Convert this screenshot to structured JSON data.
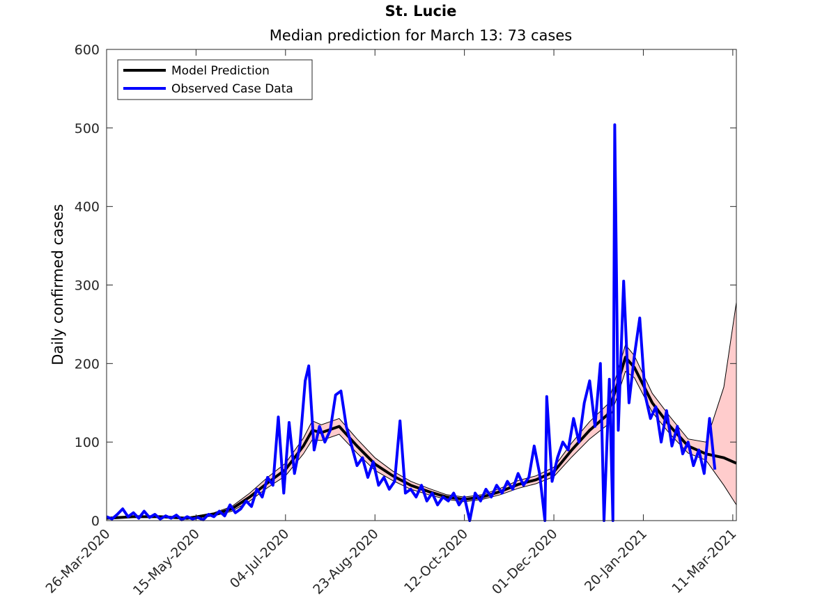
{
  "chart_data": {
    "type": "line",
    "title": "St. Lucie",
    "subtitle": "Median prediction for March 13: 73 cases",
    "xlabel": "",
    "ylabel": "Daily confirmed cases",
    "x_range": [
      "2020-03-26",
      "2021-03-13"
    ],
    "ylim": [
      0,
      600
    ],
    "yticks": [
      0,
      100,
      200,
      300,
      400,
      500,
      600
    ],
    "xticks": [
      {
        "date": "2020-03-26",
        "label": "26-Mar-2020"
      },
      {
        "date": "2020-05-15",
        "label": "15-May-2020"
      },
      {
        "date": "2020-07-04",
        "label": "04-Jul-2020"
      },
      {
        "date": "2020-08-23",
        "label": "23-Aug-2020"
      },
      {
        "date": "2020-10-12",
        "label": "12-Oct-2020"
      },
      {
        "date": "2020-12-01",
        "label": "01-Dec-2020"
      },
      {
        "date": "2021-01-20",
        "label": "20-Jan-2021"
      },
      {
        "date": "2021-03-11",
        "label": "11-Mar-2021"
      }
    ],
    "grid": false,
    "legend_position": "top-left",
    "colors": {
      "model": "#000000",
      "observed": "#0000ff",
      "band_fill": "#ffcccc",
      "axis": "#262626"
    },
    "series": [
      {
        "name": "Model Prediction",
        "points": [
          [
            "2020-03-26",
            3
          ],
          [
            "2020-04-10",
            5
          ],
          [
            "2020-04-25",
            5
          ],
          [
            "2020-05-10",
            3
          ],
          [
            "2020-05-25",
            8
          ],
          [
            "2020-06-04",
            15
          ],
          [
            "2020-06-14",
            30
          ],
          [
            "2020-06-24",
            48
          ],
          [
            "2020-07-04",
            65
          ],
          [
            "2020-07-14",
            95
          ],
          [
            "2020-07-19",
            115
          ],
          [
            "2020-07-24",
            112
          ],
          [
            "2020-08-03",
            120
          ],
          [
            "2020-08-13",
            95
          ],
          [
            "2020-08-23",
            72
          ],
          [
            "2020-09-02",
            57
          ],
          [
            "2020-09-12",
            45
          ],
          [
            "2020-09-22",
            37
          ],
          [
            "2020-10-02",
            30
          ],
          [
            "2020-10-12",
            27
          ],
          [
            "2020-10-22",
            30
          ],
          [
            "2020-11-01",
            37
          ],
          [
            "2020-11-11",
            46
          ],
          [
            "2020-11-21",
            52
          ],
          [
            "2020-12-01",
            62
          ],
          [
            "2020-12-11",
            90
          ],
          [
            "2020-12-21",
            115
          ],
          [
            "2020-12-31",
            135
          ],
          [
            "2021-01-05",
            170
          ],
          [
            "2021-01-10",
            208
          ],
          [
            "2021-01-15",
            195
          ],
          [
            "2021-01-25",
            150
          ],
          [
            "2021-02-04",
            120
          ],
          [
            "2021-02-14",
            95
          ],
          [
            "2021-02-24",
            85
          ],
          [
            "2021-03-06",
            80
          ],
          [
            "2021-03-13",
            73
          ]
        ],
        "lower": [
          [
            "2020-03-26",
            2
          ],
          [
            "2020-04-10",
            4
          ],
          [
            "2020-04-25",
            4
          ],
          [
            "2020-05-10",
            2
          ],
          [
            "2020-05-25",
            6
          ],
          [
            "2020-06-04",
            12
          ],
          [
            "2020-06-14",
            25
          ],
          [
            "2020-06-24",
            42
          ],
          [
            "2020-07-04",
            57
          ],
          [
            "2020-07-14",
            85
          ],
          [
            "2020-07-19",
            103
          ],
          [
            "2020-07-24",
            102
          ],
          [
            "2020-08-03",
            110
          ],
          [
            "2020-08-13",
            86
          ],
          [
            "2020-08-23",
            64
          ],
          [
            "2020-09-02",
            51
          ],
          [
            "2020-09-12",
            40
          ],
          [
            "2020-09-22",
            33
          ],
          [
            "2020-10-02",
            27
          ],
          [
            "2020-10-12",
            24
          ],
          [
            "2020-10-22",
            27
          ],
          [
            "2020-11-01",
            33
          ],
          [
            "2020-11-11",
            41
          ],
          [
            "2020-11-21",
            47
          ],
          [
            "2020-12-01",
            56
          ],
          [
            "2020-12-11",
            81
          ],
          [
            "2020-12-21",
            104
          ],
          [
            "2020-12-31",
            122
          ],
          [
            "2021-01-05",
            155
          ],
          [
            "2021-01-10",
            190
          ],
          [
            "2021-01-15",
            182
          ],
          [
            "2021-01-25",
            138
          ],
          [
            "2021-02-04",
            110
          ],
          [
            "2021-02-14",
            86
          ],
          [
            "2021-02-24",
            77
          ],
          [
            "2021-03-06",
            45
          ],
          [
            "2021-03-13",
            20
          ]
        ],
        "upper": [
          [
            "2020-03-26",
            4
          ],
          [
            "2020-04-10",
            6
          ],
          [
            "2020-04-25",
            6
          ],
          [
            "2020-05-10",
            4
          ],
          [
            "2020-05-25",
            10
          ],
          [
            "2020-06-04",
            18
          ],
          [
            "2020-06-14",
            35
          ],
          [
            "2020-06-24",
            55
          ],
          [
            "2020-07-04",
            73
          ],
          [
            "2020-07-14",
            105
          ],
          [
            "2020-07-19",
            127
          ],
          [
            "2020-07-24",
            122
          ],
          [
            "2020-08-03",
            130
          ],
          [
            "2020-08-13",
            104
          ],
          [
            "2020-08-23",
            80
          ],
          [
            "2020-09-02",
            63
          ],
          [
            "2020-09-12",
            50
          ],
          [
            "2020-09-22",
            41
          ],
          [
            "2020-10-02",
            33
          ],
          [
            "2020-10-12",
            30
          ],
          [
            "2020-10-22",
            33
          ],
          [
            "2020-11-01",
            41
          ],
          [
            "2020-11-11",
            51
          ],
          [
            "2020-11-21",
            57
          ],
          [
            "2020-12-01",
            68
          ],
          [
            "2020-12-11",
            99
          ],
          [
            "2020-12-21",
            126
          ],
          [
            "2020-12-31",
            148
          ],
          [
            "2021-01-05",
            185
          ],
          [
            "2021-01-10",
            224
          ],
          [
            "2021-01-15",
            210
          ],
          [
            "2021-01-25",
            162
          ],
          [
            "2021-02-04",
            132
          ],
          [
            "2021-02-14",
            104
          ],
          [
            "2021-02-24",
            100
          ],
          [
            "2021-03-06",
            170
          ],
          [
            "2021-03-13",
            278
          ]
        ]
      },
      {
        "name": "Observed Case Data",
        "points": [
          [
            "2020-03-26",
            5
          ],
          [
            "2020-03-29",
            2
          ],
          [
            "2020-04-01",
            8
          ],
          [
            "2020-04-04",
            15
          ],
          [
            "2020-04-07",
            5
          ],
          [
            "2020-04-10",
            10
          ],
          [
            "2020-04-13",
            3
          ],
          [
            "2020-04-16",
            12
          ],
          [
            "2020-04-19",
            4
          ],
          [
            "2020-04-22",
            8
          ],
          [
            "2020-04-25",
            2
          ],
          [
            "2020-04-28",
            6
          ],
          [
            "2020-05-01",
            3
          ],
          [
            "2020-05-04",
            7
          ],
          [
            "2020-05-07",
            1
          ],
          [
            "2020-05-10",
            5
          ],
          [
            "2020-05-13",
            2
          ],
          [
            "2020-05-16",
            4
          ],
          [
            "2020-05-19",
            1
          ],
          [
            "2020-05-22",
            8
          ],
          [
            "2020-05-25",
            5
          ],
          [
            "2020-05-28",
            12
          ],
          [
            "2020-05-31",
            6
          ],
          [
            "2020-06-03",
            20
          ],
          [
            "2020-06-06",
            10
          ],
          [
            "2020-06-09",
            15
          ],
          [
            "2020-06-12",
            25
          ],
          [
            "2020-06-15",
            18
          ],
          [
            "2020-06-18",
            40
          ],
          [
            "2020-06-21",
            30
          ],
          [
            "2020-06-24",
            55
          ],
          [
            "2020-06-27",
            45
          ],
          [
            "2020-06-30",
            132
          ],
          [
            "2020-07-03",
            35
          ],
          [
            "2020-07-06",
            125
          ],
          [
            "2020-07-09",
            60
          ],
          [
            "2020-07-12",
            95
          ],
          [
            "2020-07-15",
            178
          ],
          [
            "2020-07-17",
            197
          ],
          [
            "2020-07-20",
            90
          ],
          [
            "2020-07-23",
            120
          ],
          [
            "2020-07-26",
            100
          ],
          [
            "2020-07-29",
            115
          ],
          [
            "2020-08-01",
            160
          ],
          [
            "2020-08-04",
            165
          ],
          [
            "2020-08-07",
            120
          ],
          [
            "2020-08-10",
            95
          ],
          [
            "2020-08-13",
            70
          ],
          [
            "2020-08-16",
            80
          ],
          [
            "2020-08-19",
            55
          ],
          [
            "2020-08-22",
            75
          ],
          [
            "2020-08-25",
            45
          ],
          [
            "2020-08-28",
            55
          ],
          [
            "2020-08-31",
            40
          ],
          [
            "2020-09-03",
            50
          ],
          [
            "2020-09-06",
            127
          ],
          [
            "2020-09-09",
            35
          ],
          [
            "2020-09-12",
            40
          ],
          [
            "2020-09-15",
            30
          ],
          [
            "2020-09-18",
            45
          ],
          [
            "2020-09-21",
            25
          ],
          [
            "2020-09-24",
            35
          ],
          [
            "2020-09-27",
            20
          ],
          [
            "2020-09-30",
            30
          ],
          [
            "2020-10-03",
            25
          ],
          [
            "2020-10-06",
            35
          ],
          [
            "2020-10-09",
            20
          ],
          [
            "2020-10-12",
            30
          ],
          [
            "2020-10-15",
            0
          ],
          [
            "2020-10-18",
            35
          ],
          [
            "2020-10-21",
            25
          ],
          [
            "2020-10-24",
            40
          ],
          [
            "2020-10-27",
            30
          ],
          [
            "2020-10-30",
            45
          ],
          [
            "2020-11-02",
            35
          ],
          [
            "2020-11-05",
            50
          ],
          [
            "2020-11-08",
            40
          ],
          [
            "2020-11-11",
            60
          ],
          [
            "2020-11-14",
            45
          ],
          [
            "2020-11-17",
            55
          ],
          [
            "2020-11-20",
            95
          ],
          [
            "2020-11-23",
            60
          ],
          [
            "2020-11-26",
            0
          ],
          [
            "2020-11-27",
            158
          ],
          [
            "2020-11-30",
            50
          ],
          [
            "2020-12-03",
            80
          ],
          [
            "2020-12-06",
            100
          ],
          [
            "2020-12-09",
            90
          ],
          [
            "2020-12-12",
            130
          ],
          [
            "2020-12-15",
            100
          ],
          [
            "2020-12-18",
            150
          ],
          [
            "2020-12-21",
            178
          ],
          [
            "2020-12-24",
            120
          ],
          [
            "2020-12-27",
            200
          ],
          [
            "2020-12-29",
            0
          ],
          [
            "2021-01-01",
            180
          ],
          [
            "2021-01-03",
            0
          ],
          [
            "2021-01-04",
            504
          ],
          [
            "2021-01-06",
            115
          ],
          [
            "2021-01-09",
            305
          ],
          [
            "2021-01-12",
            150
          ],
          [
            "2021-01-15",
            210
          ],
          [
            "2021-01-18",
            258
          ],
          [
            "2021-01-21",
            160
          ],
          [
            "2021-01-24",
            130
          ],
          [
            "2021-01-27",
            145
          ],
          [
            "2021-01-30",
            100
          ],
          [
            "2021-02-02",
            140
          ],
          [
            "2021-02-05",
            95
          ],
          [
            "2021-02-08",
            120
          ],
          [
            "2021-02-11",
            85
          ],
          [
            "2021-02-14",
            100
          ],
          [
            "2021-02-17",
            70
          ],
          [
            "2021-02-20",
            90
          ],
          [
            "2021-02-23",
            60
          ],
          [
            "2021-02-26",
            130
          ],
          [
            "2021-03-01",
            65
          ]
        ]
      }
    ]
  }
}
